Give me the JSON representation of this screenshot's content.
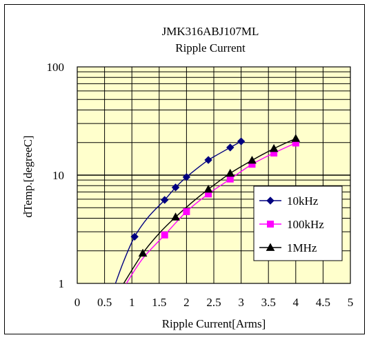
{
  "chart_data": {
    "type": "line",
    "title": "JMK316ABJ107ML",
    "subtitle": "Ripple Current",
    "xlabel": "Ripple Current[Arms]",
    "ylabel": "dTemp.[degreeC]",
    "xlim": [
      0,
      5
    ],
    "ylim": [
      1,
      100
    ],
    "yscale": "log",
    "x_ticks": [
      "0",
      "0.5",
      "1",
      "1.5",
      "2",
      "2.5",
      "3",
      "3.5",
      "4",
      "4.5",
      "5"
    ],
    "y_ticks": [
      "1",
      "10",
      "100"
    ],
    "grid": true,
    "plot_background": "#ffffcc",
    "legend_position": "lower-right",
    "series": [
      {
        "name": "10kHz",
        "color": "#000080",
        "marker": "diamond",
        "markers": [
          [
            1.05,
            2.7
          ],
          [
            1.6,
            5.9
          ],
          [
            1.8,
            7.7
          ],
          [
            2.0,
            9.6
          ],
          [
            2.4,
            13.8
          ],
          [
            2.8,
            18.0
          ],
          [
            3.0,
            20.5
          ]
        ],
        "curve": [
          [
            0.7,
            1.0
          ],
          [
            0.85,
            1.6
          ],
          [
            1.05,
            2.7
          ],
          [
            1.3,
            4.1
          ],
          [
            1.6,
            5.9
          ],
          [
            1.8,
            7.7
          ],
          [
            2.0,
            9.6
          ],
          [
            2.2,
            11.6
          ],
          [
            2.4,
            13.8
          ],
          [
            2.6,
            15.8
          ],
          [
            2.8,
            18.0
          ],
          [
            3.0,
            20.5
          ]
        ]
      },
      {
        "name": "100kHz",
        "color": "#ff00ff",
        "marker": "square",
        "markers": [
          [
            1.6,
            2.8
          ],
          [
            2.0,
            4.6
          ],
          [
            2.4,
            6.7
          ],
          [
            2.8,
            9.2
          ],
          [
            3.2,
            12.6
          ],
          [
            3.6,
            16.0
          ],
          [
            4.0,
            19.8
          ]
        ],
        "curve": [
          [
            0.9,
            1.0
          ],
          [
            1.2,
            1.7
          ],
          [
            1.6,
            2.8
          ],
          [
            2.0,
            4.6
          ],
          [
            2.4,
            6.7
          ],
          [
            2.8,
            9.2
          ],
          [
            3.2,
            12.6
          ],
          [
            3.6,
            16.0
          ],
          [
            4.0,
            19.8
          ]
        ]
      },
      {
        "name": "1MHz",
        "color": "#000000",
        "marker": "triangle",
        "markers": [
          [
            1.2,
            1.9
          ],
          [
            1.8,
            4.1
          ],
          [
            2.4,
            7.4
          ],
          [
            2.8,
            10.4
          ],
          [
            3.2,
            13.7
          ],
          [
            3.6,
            17.6
          ],
          [
            4.0,
            21.8
          ]
        ],
        "curve": [
          [
            0.85,
            1.0
          ],
          [
            1.2,
            1.9
          ],
          [
            1.5,
            2.9
          ],
          [
            1.8,
            4.1
          ],
          [
            2.1,
            5.6
          ],
          [
            2.4,
            7.4
          ],
          [
            2.8,
            10.4
          ],
          [
            3.2,
            13.7
          ],
          [
            3.6,
            17.6
          ],
          [
            4.0,
            21.8
          ]
        ]
      }
    ]
  }
}
